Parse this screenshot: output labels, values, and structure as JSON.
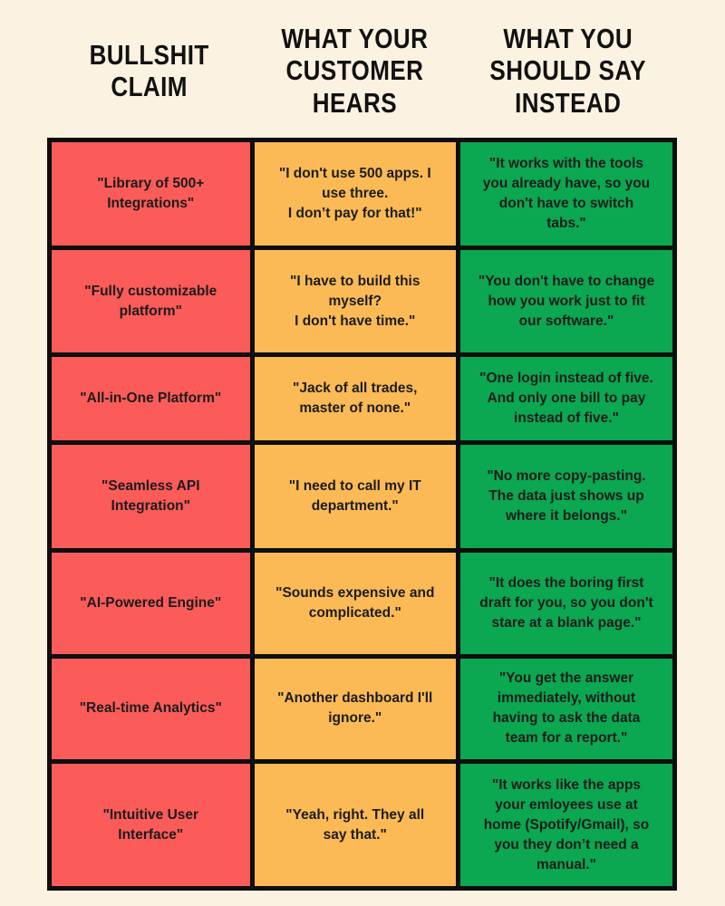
{
  "colors": {
    "bg": "#FBF2E1",
    "border": "#0E0E0E",
    "text": "#1C1C1C",
    "red": "#FB5B59",
    "orange": "#FBBA55",
    "green": "#0BA751"
  },
  "headers": {
    "col1": "BULLSHIT\nCLAIM",
    "col2": "WHAT YOUR\nCUSTOMER\nHEARS",
    "col3": "WHAT YOU\nSHOULD SAY\nINSTEAD"
  },
  "chart_data": {
    "type": "table",
    "columns": [
      "BULLSHIT CLAIM",
      "WHAT YOUR CUSTOMER HEARS",
      "WHAT YOU SHOULD SAY INSTEAD"
    ],
    "column_colors": [
      "#FB5B59",
      "#FBBA55",
      "#0BA751"
    ],
    "rows": [
      {
        "claim": "\"Library of 500+\nIntegrations\"",
        "hears": "\"I don't use 500 apps. I\nuse three.\nI don’t pay for that!\"",
        "instead": "\"It works with the tools\nyou already have, so you\ndon't have to switch\ntabs.\""
      },
      {
        "claim": "\"Fully customizable\nplatform\"",
        "hears": "\"I have to build this\nmyself?\nI don't have time.\"",
        "instead": "\"You don't have to change\nhow you work just to fit\nour software.\""
      },
      {
        "claim": "\"All-in-One Platform\"",
        "hears": "\"Jack of all trades,\nmaster of none.\"",
        "instead": "\"One login instead of five.\nAnd only one bill to pay\ninstead of five.\""
      },
      {
        "claim": "\"Seamless API\nIntegration\"",
        "hears": "\"I need to call my IT\ndepartment.\"",
        "instead": "\"No more copy-pasting.\nThe data just shows up\nwhere it belongs.\""
      },
      {
        "claim": "\"AI-Powered Engine\"",
        "hears": "\"Sounds expensive and\ncomplicated.\"",
        "instead": "\"It does the boring first\ndraft for you, so you don't\nstare at a blank page.\""
      },
      {
        "claim": "\"Real-time Analytics\"",
        "hears": "\"Another dashboard I'll\nignore.\"",
        "instead": "\"You get the answer\nimmediately, without\nhaving to ask the data\nteam for a report.\""
      },
      {
        "claim": "\"Intuitive User\nInterface\"",
        "hears": "\"Yeah, right. They all\nsay that.\"",
        "instead": "\"It works like the apps\nyour emloyees use at\nhome (Spotify/Gmail), so\nyou they don’t need a\nmanual.\""
      }
    ]
  }
}
